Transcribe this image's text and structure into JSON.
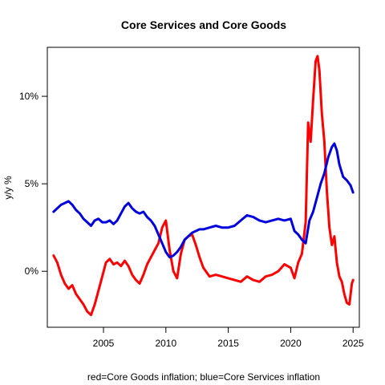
{
  "chart_data": {
    "type": "line",
    "title": "Core Services and Core Goods",
    "ylabel": "y/y %",
    "xlabel": "red=Core Goods inflation; blue=Core Services inflation",
    "xlim": [
      2000.5,
      2025.5
    ],
    "ylim": [
      -3.2,
      12.8
    ],
    "x_ticks": [
      2005,
      2010,
      2015,
      2020,
      2025
    ],
    "y_ticks": [
      {
        "value": 0,
        "label": "0%"
      },
      {
        "value": 5,
        "label": "5%"
      },
      {
        "value": 10,
        "label": "10%"
      }
    ],
    "grid": false,
    "series": [
      {
        "color": "#ff0000",
        "x": [
          2001.0,
          2001.3,
          2001.6,
          2001.9,
          2002.2,
          2002.5,
          2002.8,
          2003.1,
          2003.4,
          2003.7,
          2004.0,
          2004.3,
          2004.6,
          2004.9,
          2005.2,
          2005.5,
          2005.8,
          2006.1,
          2006.4,
          2006.7,
          2007.0,
          2007.3,
          2007.6,
          2007.9,
          2008.2,
          2008.5,
          2008.8,
          2009.1,
          2009.4,
          2009.7,
          2010.0,
          2010.3,
          2010.6,
          2010.9,
          2011.2,
          2011.5,
          2011.8,
          2012.1,
          2012.4,
          2012.7,
          2013.0,
          2013.5,
          2014.0,
          2014.5,
          2015.0,
          2015.5,
          2016.0,
          2016.5,
          2017.0,
          2017.5,
          2018.0,
          2018.5,
          2019.0,
          2019.5,
          2020.0,
          2020.3,
          2020.6,
          2020.9,
          2021.2,
          2021.4,
          2021.6,
          2021.8,
          2022.0,
          2022.15,
          2022.3,
          2022.5,
          2022.7,
          2022.9,
          2023.1,
          2023.3,
          2023.5,
          2023.7,
          2023.9,
          2024.1,
          2024.3,
          2024.5,
          2024.7,
          2024.9,
          2025.0
        ],
        "y": [
          0.9,
          0.5,
          -0.2,
          -0.7,
          -1.0,
          -0.8,
          -1.3,
          -1.6,
          -1.9,
          -2.3,
          -2.5,
          -1.9,
          -1.1,
          -0.3,
          0.5,
          0.7,
          0.4,
          0.5,
          0.3,
          0.6,
          0.3,
          -0.2,
          -0.5,
          -0.7,
          -0.2,
          0.4,
          0.8,
          1.2,
          1.6,
          2.5,
          2.9,
          1.2,
          0.0,
          -0.4,
          1.0,
          1.8,
          2.0,
          2.1,
          1.5,
          0.8,
          0.2,
          -0.3,
          -0.2,
          -0.3,
          -0.4,
          -0.5,
          -0.6,
          -0.3,
          -0.5,
          -0.6,
          -0.3,
          -0.2,
          0.0,
          0.4,
          0.2,
          -0.4,
          0.5,
          1.0,
          2.8,
          8.5,
          7.4,
          9.8,
          12.0,
          12.3,
          11.5,
          9.0,
          7.4,
          4.6,
          2.5,
          1.5,
          2.0,
          0.5,
          -0.3,
          -0.6,
          -1.3,
          -1.8,
          -1.9,
          -0.7,
          -0.5
        ]
      },
      {
        "color": "#0000dd",
        "x": [
          2001.0,
          2001.3,
          2001.6,
          2001.9,
          2002.2,
          2002.5,
          2002.8,
          2003.1,
          2003.4,
          2003.7,
          2004.0,
          2004.3,
          2004.6,
          2004.9,
          2005.2,
          2005.5,
          2005.8,
          2006.1,
          2006.4,
          2006.7,
          2007.0,
          2007.3,
          2007.6,
          2007.9,
          2008.2,
          2008.5,
          2008.8,
          2009.1,
          2009.4,
          2009.7,
          2010.0,
          2010.3,
          2010.6,
          2010.9,
          2011.2,
          2011.5,
          2011.8,
          2012.1,
          2012.4,
          2012.7,
          2013.0,
          2013.5,
          2014.0,
          2014.5,
          2015.0,
          2015.5,
          2016.0,
          2016.5,
          2017.0,
          2017.5,
          2018.0,
          2018.5,
          2019.0,
          2019.5,
          2020.0,
          2020.3,
          2020.6,
          2020.9,
          2021.2,
          2021.5,
          2021.8,
          2022.1,
          2022.4,
          2022.7,
          2023.0,
          2023.3,
          2023.5,
          2023.7,
          2023.9,
          2024.2,
          2024.5,
          2024.8,
          2025.0
        ],
        "y": [
          3.4,
          3.6,
          3.8,
          3.9,
          4.0,
          3.8,
          3.5,
          3.3,
          3.0,
          2.8,
          2.6,
          2.9,
          3.0,
          2.8,
          2.8,
          2.9,
          2.7,
          2.9,
          3.3,
          3.7,
          3.9,
          3.6,
          3.4,
          3.3,
          3.4,
          3.1,
          2.9,
          2.6,
          2.1,
          1.6,
          1.1,
          0.8,
          0.9,
          1.1,
          1.4,
          1.8,
          2.0,
          2.2,
          2.3,
          2.4,
          2.4,
          2.5,
          2.6,
          2.5,
          2.5,
          2.6,
          2.9,
          3.2,
          3.1,
          2.9,
          2.8,
          2.9,
          3.0,
          2.9,
          3.0,
          2.3,
          2.1,
          1.8,
          1.6,
          2.9,
          3.4,
          4.2,
          5.0,
          5.6,
          6.5,
          7.1,
          7.3,
          6.9,
          6.1,
          5.4,
          5.2,
          4.9,
          4.5
        ]
      }
    ]
  }
}
